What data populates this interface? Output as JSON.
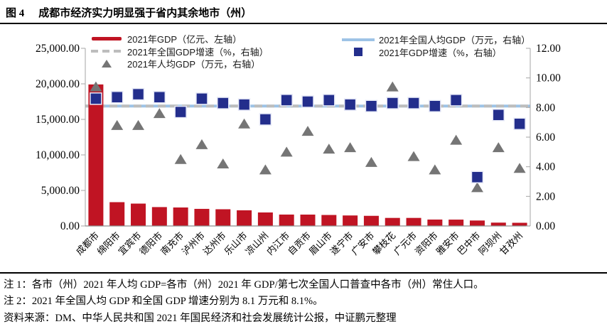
{
  "figure_label": "图 4",
  "title": "成都市经济实力明显强于省内其余地市（州）",
  "legend_left": [
    {
      "swatch": "red-solid-line",
      "label": "2021年GDP（亿元、左轴）"
    },
    {
      "swatch": "gray-dashed-line",
      "label": "2021年全国GDP增速（%，右轴）"
    },
    {
      "swatch": "gray-triangle",
      "label": "2021年人均GDP（万元，右轴）"
    }
  ],
  "legend_right": [
    {
      "swatch": "lightblue-solid-line",
      "label": "2021年全国人均GDP（万元，右轴）"
    },
    {
      "swatch": "blue-square",
      "label": "2021年GDP增速（%，右轴）"
    }
  ],
  "chart_data": {
    "type": "combo: bar + scatter markers + horizontal reference lines, dual axis",
    "categories": [
      "成都市",
      "绵阳市",
      "宜宾市",
      "德阳市",
      "南充市",
      "泸州市",
      "达州市",
      "乐山市",
      "凉山州",
      "内江市",
      "自贡市",
      "眉山市",
      "遂宁市",
      "广安市",
      "攀枝花",
      "广元市",
      "资阳市",
      "雅安市",
      "巴中市",
      "阿坝州",
      "甘孜州"
    ],
    "series": [
      {
        "name": "2021年GDP（亿元、左轴）",
        "type": "bar",
        "axis": "left",
        "values": [
          19917,
          3350,
          3148,
          2657,
          2602,
          2406,
          2351,
          2205,
          1901,
          1605,
          1601,
          1547,
          1478,
          1427,
          1133,
          1133,
          903,
          895,
          767,
          471,
          449
        ]
      },
      {
        "name": "2021年人均GDP（万元，右轴）",
        "type": "scatter_triangle",
        "axis": "right",
        "values": [
          9.4,
          6.8,
          6.8,
          7.6,
          4.5,
          5.5,
          4.2,
          6.9,
          3.8,
          5.0,
          6.4,
          5.2,
          5.3,
          4.3,
          9.4,
          4.7,
          3.8,
          5.8,
          2.6,
          5.3,
          3.9
        ]
      },
      {
        "name": "2021年GDP增速（%，右轴）",
        "type": "scatter_square",
        "axis": "right",
        "values": [
          8.6,
          8.7,
          8.9,
          8.7,
          7.7,
          8.6,
          8.3,
          8.2,
          7.2,
          8.5,
          8.4,
          8.5,
          8.2,
          8.1,
          8.3,
          8.3,
          8.1,
          8.5,
          3.3,
          7.5,
          6.9
        ]
      },
      {
        "name": "2021年全国人均GDP（万元，右轴）",
        "type": "hline_solid",
        "axis": "right",
        "value": 8.1
      },
      {
        "name": "2021年全国GDP增速（%，右轴）",
        "type": "hline_dashed",
        "axis": "right",
        "value": 8.1
      }
    ],
    "left_axis": {
      "min": 0,
      "max": 25000,
      "step": 5000,
      "tick_labels": [
        "0.00",
        "5,000.00",
        "10,000.00",
        "15,000.00",
        "20,000.00",
        "25,000.00"
      ]
    },
    "right_axis": {
      "min": 0,
      "max": 12,
      "step": 2,
      "tick_labels": [
        "0.00",
        "2.00",
        "4.00",
        "6.00",
        "8.00",
        "10.00",
        "12.00"
      ]
    },
    "grid": "off",
    "legend_position": "top (two columns)",
    "colors": {
      "bar": "#c01423",
      "triangle": "#757575",
      "square": "#232e8c",
      "square_border": "#e6e9f7",
      "national_per_capita_line": "#9dc3e6",
      "national_growth_line": "#bdbdbd",
      "axis_line": "#a6a6a6",
      "baseline": "#8c8c8c"
    }
  },
  "notes": [
    "注 1：各市（州）2021 年人均 GDP=各市（州）2021 年 GDP/第七次全国人口普查中各市（州）常住人口。",
    "注 2：2021 年全国人均 GDP 和全国 GDP 增速分别为 8.1 万元和 8.1%。"
  ],
  "source": "资料来源：DM、中华人民共和国 2021 年国民经济和社会发展统计公报，中证鹏元整理"
}
